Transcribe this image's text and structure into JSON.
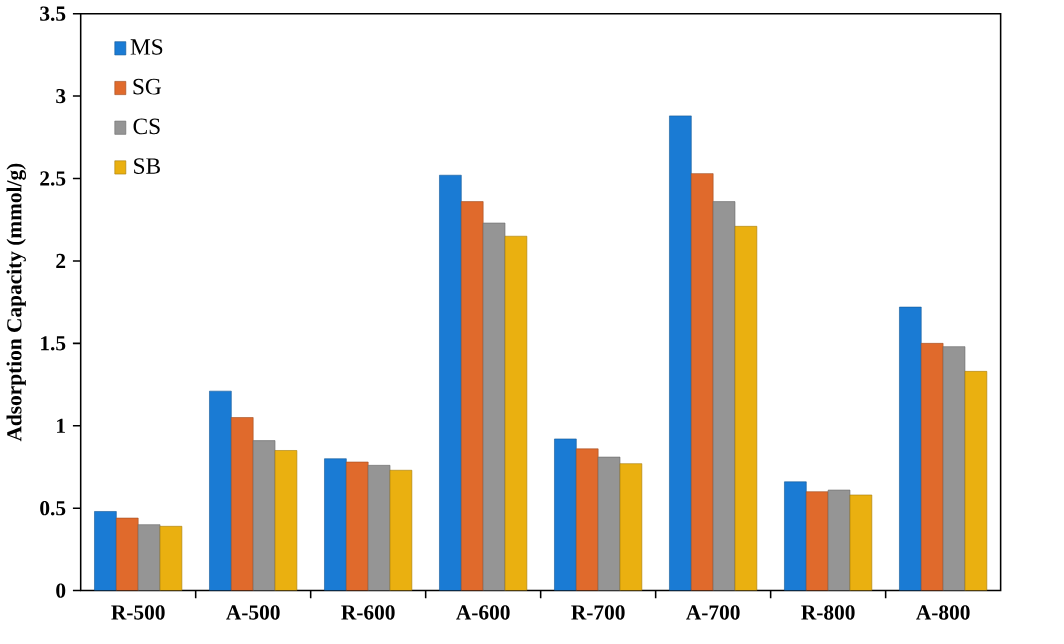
{
  "chart_data": {
    "type": "bar",
    "ylabel": "Adsorption Capacity (mmol/g)",
    "categories": [
      "R-500",
      "A-500",
      "R-600",
      "A-600",
      "R-700",
      "A-700",
      "R-800",
      "A-800"
    ],
    "series": [
      {
        "name": "MS",
        "color": "#1a7bd4",
        "values": [
          0.48,
          1.21,
          0.8,
          2.52,
          0.92,
          2.88,
          0.66,
          1.72
        ]
      },
      {
        "name": "SG",
        "color": "#e06a2c",
        "values": [
          0.44,
          1.05,
          0.78,
          2.36,
          0.86,
          2.53,
          0.6,
          1.5
        ]
      },
      {
        "name": "CS",
        "color": "#959595",
        "values": [
          0.4,
          0.91,
          0.76,
          2.23,
          0.81,
          2.36,
          0.61,
          1.48
        ]
      },
      {
        "name": "SB",
        "color": "#eab010",
        "values": [
          0.39,
          0.85,
          0.73,
          2.15,
          0.77,
          2.21,
          0.58,
          1.33
        ]
      }
    ],
    "ylim": [
      0,
      3.5
    ],
    "yticks": [
      0,
      0.5,
      1,
      1.5,
      2,
      2.5,
      3,
      3.5
    ],
    "legend": "top left"
  }
}
